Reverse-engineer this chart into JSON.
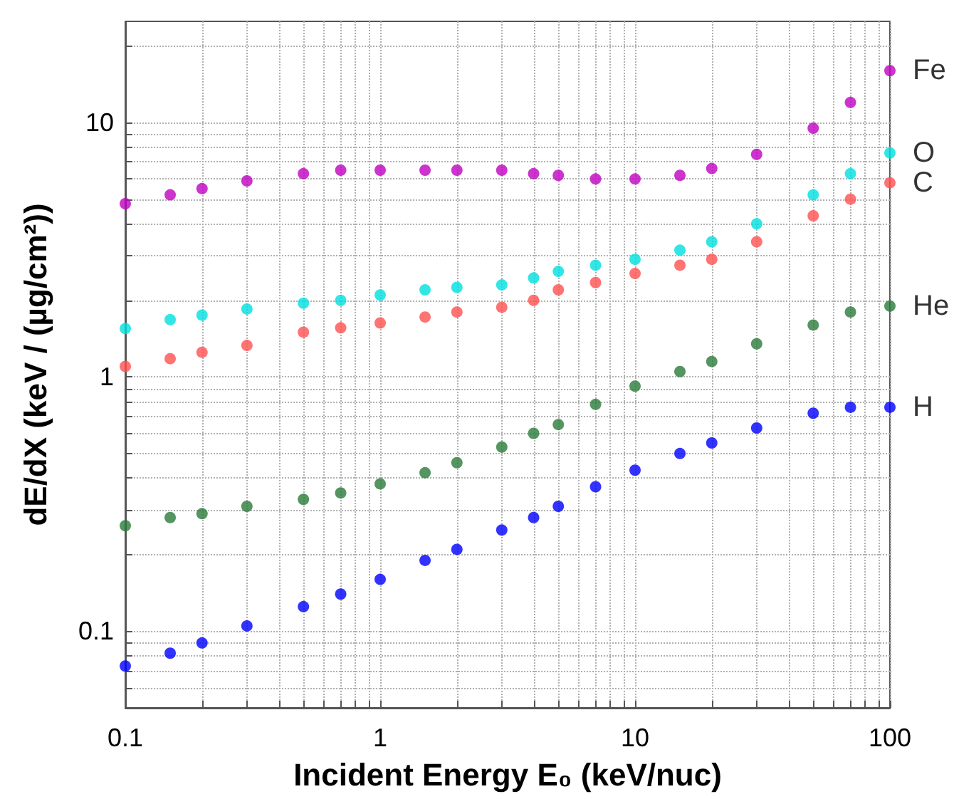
{
  "chart_data": {
    "type": "scatter",
    "xlabel": "Incident Energy E₀ (keV/nuc)",
    "ylabel": "dE/dX (keV / (µg/cm²))",
    "log": "xy",
    "grid": true,
    "marker": "circle",
    "legend": false,
    "xlim": [
      0.1,
      100
    ],
    "ylim": [
      0.05,
      25
    ],
    "xticks": [
      0.1,
      {
        "value": 0.2,
        "label": null
      },
      {
        "value": 0.3,
        "label": null
      },
      {
        "value": 0.4,
        "label": null
      },
      {
        "value": 0.5,
        "label": null
      },
      {
        "value": 0.6,
        "label": null
      },
      {
        "value": 0.7,
        "label": null
      },
      {
        "value": 0.8,
        "label": null
      },
      {
        "value": 0.9,
        "label": null
      },
      1,
      {
        "value": 2,
        "label": null
      },
      {
        "value": 3,
        "label": null
      },
      {
        "value": 4,
        "label": null
      },
      {
        "value": 5,
        "label": null
      },
      {
        "value": 6,
        "label": null
      },
      {
        "value": 7,
        "label": null
      },
      {
        "value": 8,
        "label": null
      },
      {
        "value": 9,
        "label": null
      },
      10,
      {
        "value": 20,
        "label": null
      },
      {
        "value": 30,
        "label": null
      },
      {
        "value": 40,
        "label": null
      },
      {
        "value": 50,
        "label": null
      },
      {
        "value": 60,
        "label": null
      },
      {
        "value": 70,
        "label": null
      },
      {
        "value": 80,
        "label": null
      },
      {
        "value": 90,
        "label": null
      },
      100
    ],
    "yticks": [
      {
        "value": 0.06,
        "label": null
      },
      {
        "value": 0.07,
        "label": null
      },
      {
        "value": 0.08,
        "label": null
      },
      {
        "value": 0.09,
        "label": null
      },
      0.1,
      {
        "value": 0.2,
        "label": null
      },
      {
        "value": 0.3,
        "label": null
      },
      {
        "value": 0.4,
        "label": null
      },
      {
        "value": 0.5,
        "label": null
      },
      {
        "value": 0.6,
        "label": null
      },
      {
        "value": 0.7,
        "label": null
      },
      {
        "value": 0.8,
        "label": null
      },
      {
        "value": 0.9,
        "label": null
      },
      1,
      {
        "value": 2,
        "label": null
      },
      {
        "value": 3,
        "label": null
      },
      {
        "value": 4,
        "label": null
      },
      {
        "value": 5,
        "label": null
      },
      {
        "value": 6,
        "label": null
      },
      {
        "value": 7,
        "label": null
      },
      {
        "value": 8,
        "label": null
      },
      {
        "value": 9,
        "label": null
      },
      10,
      {
        "value": 20,
        "label": null
      }
    ],
    "x": [
      0.1,
      0.15,
      0.2,
      0.3,
      0.5,
      0.7,
      1,
      1.5,
      2,
      3,
      4,
      5,
      7,
      10,
      15,
      20,
      30,
      50,
      70,
      100
    ],
    "series": [
      {
        "name": "Fe",
        "color": "#c000c0",
        "values": [
          4.8,
          5.2,
          5.5,
          5.9,
          6.3,
          6.5,
          6.5,
          6.5,
          6.5,
          6.5,
          6.3,
          6.2,
          6.0,
          6.0,
          6.2,
          6.6,
          7.5,
          9.5,
          12,
          16
        ]
      },
      {
        "name": "O",
        "color": "#00e0e0",
        "values": [
          1.55,
          1.68,
          1.75,
          1.85,
          1.95,
          2.0,
          2.1,
          2.2,
          2.25,
          2.3,
          2.45,
          2.6,
          2.75,
          2.9,
          3.15,
          3.4,
          4.0,
          5.2,
          6.3,
          7.6
        ]
      },
      {
        "name": "C",
        "color": "#ff5050",
        "values": [
          1.1,
          1.18,
          1.25,
          1.33,
          1.5,
          1.56,
          1.63,
          1.72,
          1.8,
          1.88,
          2.0,
          2.2,
          2.35,
          2.55,
          2.75,
          2.9,
          3.4,
          4.3,
          5.0,
          5.8
        ]
      },
      {
        "name": "He",
        "color": "#2a7a3a",
        "values": [
          0.26,
          0.28,
          0.29,
          0.31,
          0.33,
          0.35,
          0.38,
          0.42,
          0.46,
          0.53,
          0.6,
          0.65,
          0.78,
          0.92,
          1.05,
          1.15,
          1.35,
          1.6,
          1.8,
          1.9
        ]
      },
      {
        "name": "H",
        "color": "#0000ff",
        "values": [
          0.073,
          0.082,
          0.09,
          0.105,
          0.125,
          0.14,
          0.16,
          0.19,
          0.21,
          0.25,
          0.28,
          0.31,
          0.37,
          0.43,
          0.5,
          0.55,
          0.63,
          0.72,
          0.76,
          0.76
        ]
      }
    ]
  }
}
